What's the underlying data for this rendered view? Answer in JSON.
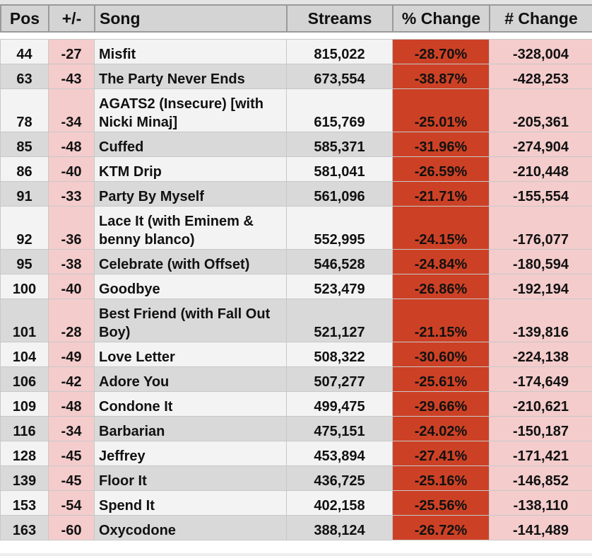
{
  "table": {
    "headers": [
      "Pos",
      "+/-",
      "Song",
      "Streams",
      "% Change",
      "# Change"
    ],
    "rows": [
      [
        "44",
        "-27",
        "Misfit",
        "815,022",
        "-28.70%",
        "-328,004"
      ],
      [
        "63",
        "-43",
        "The Party Never Ends",
        "673,554",
        "-38.87%",
        "-428,253"
      ],
      [
        "78",
        "-34",
        "AGATS2 (Insecure) [with Nicki Minaj]",
        "615,769",
        "-25.01%",
        "-205,361"
      ],
      [
        "85",
        "-48",
        "Cuffed",
        "585,371",
        "-31.96%",
        "-274,904"
      ],
      [
        "86",
        "-40",
        "KTM Drip",
        "581,041",
        "-26.59%",
        "-210,448"
      ],
      [
        "91",
        "-33",
        "Party By Myself",
        "561,096",
        "-21.71%",
        "-155,554"
      ],
      [
        "92",
        "-36",
        "Lace It (with Eminem & benny blanco)",
        "552,995",
        "-24.15%",
        "-176,077"
      ],
      [
        "95",
        "-38",
        "Celebrate (with Offset)",
        "546,528",
        "-24.84%",
        "-180,594"
      ],
      [
        "100",
        "-40",
        "Goodbye",
        "523,479",
        "-26.86%",
        "-192,194"
      ],
      [
        "101",
        "-28",
        "Best Friend (with Fall Out Boy)",
        "521,127",
        "-21.15%",
        "-139,816"
      ],
      [
        "104",
        "-49",
        "Love Letter",
        "508,322",
        "-30.60%",
        "-224,138"
      ],
      [
        "106",
        "-42",
        "Adore You",
        "507,277",
        "-25.61%",
        "-174,649"
      ],
      [
        "109",
        "-48",
        "Condone It",
        "499,475",
        "-29.66%",
        "-210,621"
      ],
      [
        "116",
        "-34",
        "Barbarian",
        "475,151",
        "-24.02%",
        "-150,187"
      ],
      [
        "128",
        "-45",
        "Jeffrey",
        "453,894",
        "-27.41%",
        "-171,421"
      ],
      [
        "139",
        "-45",
        "Floor It",
        "436,725",
        "-25.16%",
        "-146,852"
      ],
      [
        "153",
        "-54",
        "Spend It",
        "402,158",
        "-25.56%",
        "-138,110"
      ],
      [
        "163",
        "-60",
        "Oxycodone",
        "388,124",
        "-26.72%",
        "-141,489"
      ]
    ]
  }
}
